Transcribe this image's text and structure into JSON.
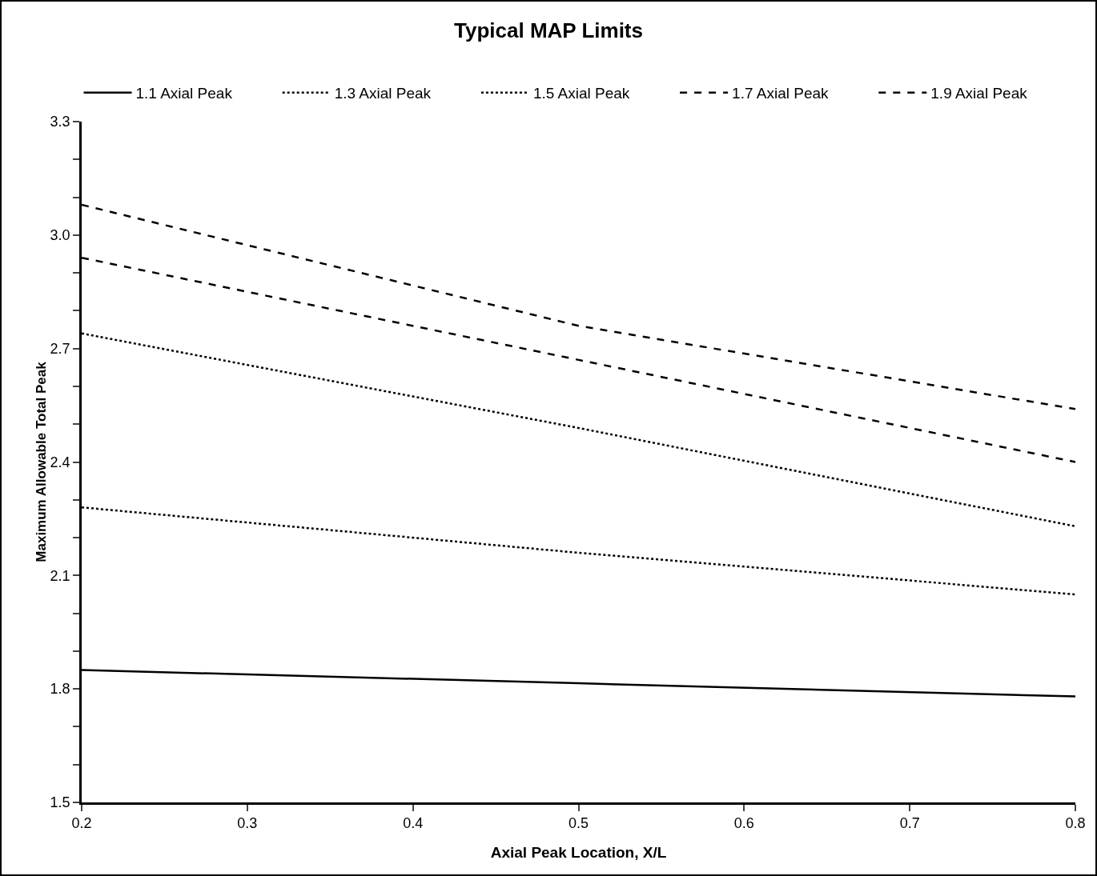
{
  "chart_data": {
    "type": "line",
    "title": "Typical MAP Limits",
    "xlabel": "Axial Peak Location, X/L",
    "ylabel": "Maximum Allowable Total Peak",
    "x": [
      0.2,
      0.5,
      0.8
    ],
    "series": [
      {
        "name": "1.1 Axial Peak",
        "color": "#000000",
        "line_style": "solid",
        "values": [
          1.85,
          1.815,
          1.78
        ]
      },
      {
        "name": "1.3 Axial Peak",
        "color": "#000000",
        "line_style": "dotted",
        "values": [
          2.28,
          2.16,
          2.05
        ]
      },
      {
        "name": "1.5 Axial Peak",
        "color": "#000000",
        "line_style": "dotted",
        "values": [
          2.74,
          2.49,
          2.23
        ]
      },
      {
        "name": "1.7 Axial Peak",
        "color": "#000000",
        "line_style": "dashed",
        "values": [
          2.94,
          2.67,
          2.4
        ]
      },
      {
        "name": "1.9 Axial Peak",
        "color": "#000000",
        "line_style": "dashed",
        "values": [
          3.08,
          2.76,
          2.54
        ]
      }
    ],
    "xlim": [
      0.2,
      0.8
    ],
    "xticks": [
      0.2,
      0.3,
      0.4,
      0.5,
      0.6,
      0.7,
      0.8
    ],
    "ylim": [
      1.5,
      3.3
    ],
    "yticks": [
      1.5,
      {
        "value": 1.6,
        "label": null
      },
      {
        "value": 1.7,
        "label": null
      },
      1.8,
      {
        "value": 1.9,
        "label": null
      },
      {
        "value": 2.0,
        "label": null
      },
      2.1,
      {
        "value": 2.2,
        "label": null
      },
      {
        "value": 2.3,
        "label": null
      },
      2.4,
      {
        "value": 2.5,
        "label": null
      },
      {
        "value": 2.6,
        "label": null
      },
      2.7,
      {
        "value": 2.8,
        "label": null
      },
      {
        "value": 2.9,
        "label": null
      },
      {
        "value": 3.0,
        "label": "3.0"
      },
      {
        "value": 3.1,
        "label": null
      },
      {
        "value": 3.2,
        "label": null
      },
      3.3
    ],
    "grid": false,
    "legend": "top",
    "marker": "none"
  }
}
